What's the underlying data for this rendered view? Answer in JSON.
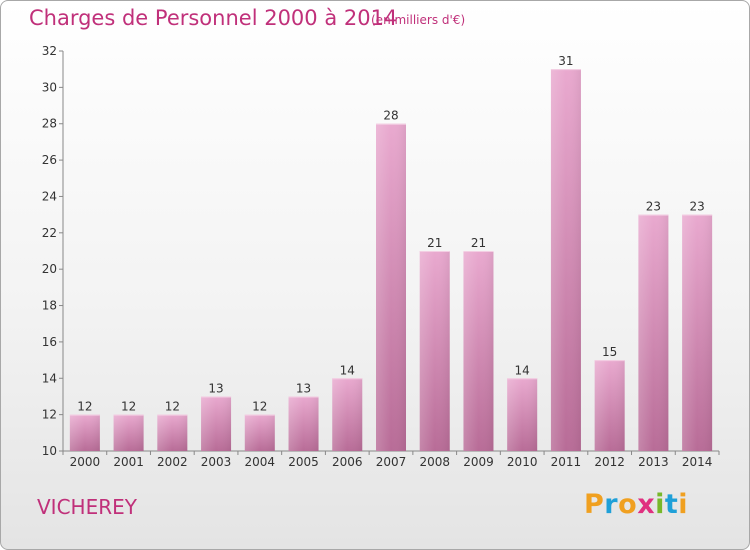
{
  "chart_data": {
    "type": "bar",
    "title": "Charges de Personnel 2000 à 2014",
    "subtitle": "(en milliers d'€)",
    "categories": [
      "2000",
      "2001",
      "2002",
      "2003",
      "2004",
      "2005",
      "2006",
      "2007",
      "2008",
      "2009",
      "2010",
      "2011",
      "2012",
      "2013",
      "2014"
    ],
    "values": [
      12,
      12,
      12,
      13,
      12,
      13,
      14,
      28,
      21,
      21,
      14,
      31,
      15,
      23,
      23
    ],
    "ylim": [
      10,
      32
    ],
    "yticks": [
      10,
      12,
      14,
      16,
      18,
      20,
      22,
      24,
      26,
      28,
      30,
      32
    ],
    "grid": false,
    "bar_color": "#d98cb8"
  },
  "footer": {
    "town": "VICHEREY",
    "logo_letters": [
      "P",
      "r",
      "o",
      "x",
      "i",
      "t",
      "i"
    ],
    "logo_colors": [
      "#f0a020",
      "#1fa0d8",
      "#f0a020",
      "#e03080",
      "#78b82a",
      "#1fa0d8",
      "#f0a020"
    ]
  }
}
